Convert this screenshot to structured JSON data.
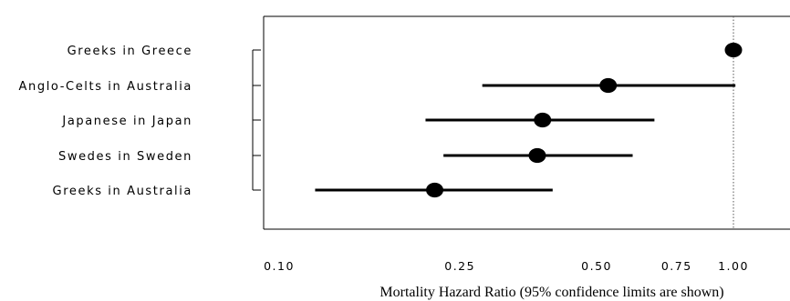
{
  "chart_data": {
    "type": "scatter",
    "subtype": "forest-plot",
    "orientation": "horizontal",
    "categories": [
      "Greeks in Greece",
      "Anglo-Celts in Australia",
      "Japanese in Japan",
      "Swedes in Sweden",
      "Greeks in Australia"
    ],
    "series": [
      {
        "points": [
          {
            "y": "Greeks in Greece",
            "x": 1.0,
            "lower": null,
            "upper": null
          },
          {
            "y": "Anglo-Celts in Australia",
            "x": 0.53,
            "lower": 0.28,
            "upper": 1.01
          },
          {
            "y": "Japanese in Japan",
            "x": 0.38,
            "lower": 0.21,
            "upper": 0.67
          },
          {
            "y": "Swedes in Sweden",
            "x": 0.37,
            "lower": 0.23,
            "upper": 0.6
          },
          {
            "y": "Greeks in Australia",
            "x": 0.22,
            "lower": 0.12,
            "upper": 0.4
          }
        ]
      }
    ],
    "x_ticks": [
      {
        "value": 0.1,
        "label": "0.10"
      },
      {
        "value": 0.25,
        "label": "0.25"
      },
      {
        "value": 0.5,
        "label": "0.50"
      },
      {
        "value": 0.75,
        "label": "0.75"
      },
      {
        "value": 1.0,
        "label": "1.00"
      }
    ],
    "xlabel": "Mortality Hazard Ratio (95% confidence limits are shown)",
    "xscale": "log",
    "xlim": [
      0.0975,
      1.28
    ],
    "reference_line": {
      "x": 1.0,
      "style": "dotted"
    },
    "grid": false,
    "legend": "none"
  }
}
